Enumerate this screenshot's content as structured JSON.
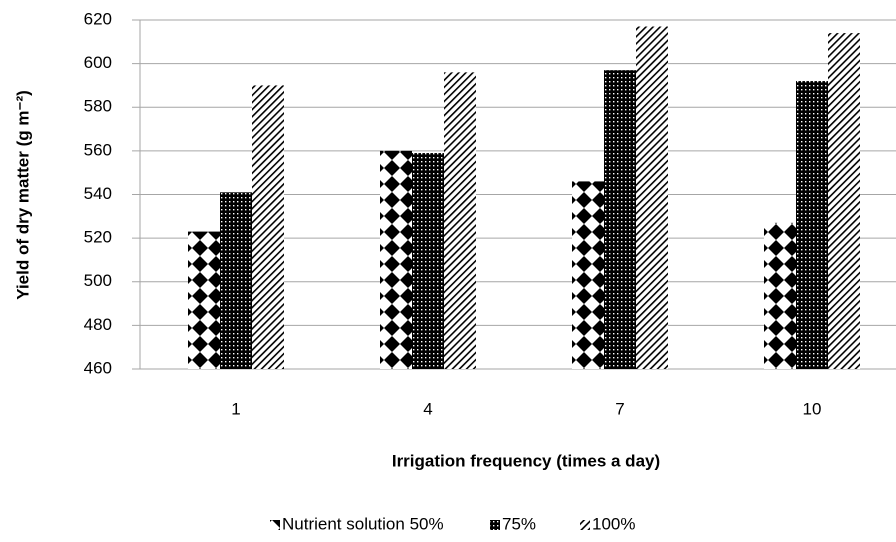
{
  "chart_data": {
    "type": "bar",
    "categories": [
      "1",
      "4",
      "7",
      "10"
    ],
    "series": [
      {
        "name": "Nutrient solution 50%",
        "color": "#000000",
        "pattern": "diamond",
        "values": [
          523,
          560,
          546,
          527
        ]
      },
      {
        "name": "75%",
        "color": "#000000",
        "pattern": "grid",
        "values": [
          541,
          559,
          597,
          592
        ]
      },
      {
        "name": "100%",
        "color": "#000000",
        "pattern": "hatch",
        "values": [
          590,
          596,
          617,
          614
        ]
      }
    ],
    "ylim": [
      460,
      620
    ],
    "yticks": [
      460,
      480,
      500,
      520,
      540,
      560,
      580,
      600,
      620
    ],
    "xlabel": "Irrigation frequency (times a day)",
    "ylabel": "Yield of dry matter (g m⁻²)",
    "grid": true,
    "legend": "bottom"
  }
}
